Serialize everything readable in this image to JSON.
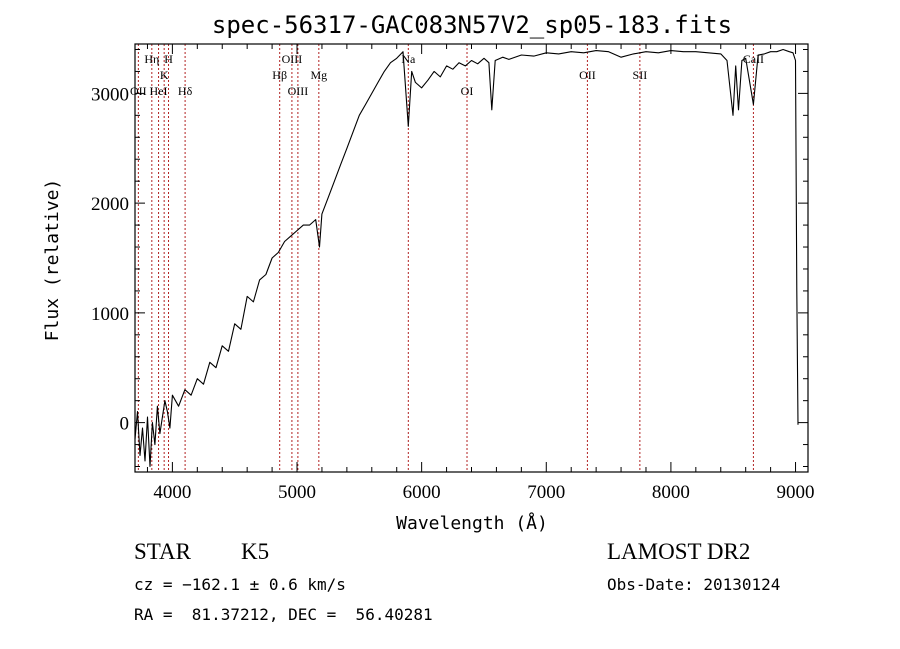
{
  "chart_data": {
    "type": "line",
    "title": "spec-56317-GAC083N57V2_sp05-183.fits",
    "xlabel": "Wavelength (Å)",
    "ylabel": "Flux (relative)",
    "xlim": [
      3700,
      9100
    ],
    "ylim": [
      -450,
      3450
    ],
    "xticks": [
      4000,
      5000,
      6000,
      7000,
      8000,
      9000
    ],
    "yticks": [
      0,
      1000,
      2000,
      3000
    ],
    "series": [
      {
        "color": "#000000",
        "points": [
          [
            3700,
            -150
          ],
          [
            3720,
            100
          ],
          [
            3740,
            -300
          ],
          [
            3760,
            -50
          ],
          [
            3780,
            -350
          ],
          [
            3800,
            50
          ],
          [
            3820,
            -400
          ],
          [
            3840,
            0
          ],
          [
            3860,
            -200
          ],
          [
            3880,
            150
          ],
          [
            3900,
            -100
          ],
          [
            3920,
            50
          ],
          [
            3940,
            200
          ],
          [
            3960,
            100
          ],
          [
            3980,
            -50
          ],
          [
            4000,
            250
          ],
          [
            4050,
            150
          ],
          [
            4100,
            300
          ],
          [
            4150,
            250
          ],
          [
            4200,
            400
          ],
          [
            4250,
            350
          ],
          [
            4300,
            550
          ],
          [
            4350,
            500
          ],
          [
            4400,
            700
          ],
          [
            4450,
            650
          ],
          [
            4500,
            900
          ],
          [
            4550,
            850
          ],
          [
            4600,
            1150
          ],
          [
            4650,
            1100
          ],
          [
            4700,
            1300
          ],
          [
            4750,
            1350
          ],
          [
            4800,
            1500
          ],
          [
            4850,
            1550
          ],
          [
            4900,
            1650
          ],
          [
            4950,
            1700
          ],
          [
            5000,
            1750
          ],
          [
            5050,
            1800
          ],
          [
            5100,
            1800
          ],
          [
            5150,
            1850
          ],
          [
            5180,
            1600
          ],
          [
            5200,
            1900
          ],
          [
            5250,
            2050
          ],
          [
            5300,
            2200
          ],
          [
            5350,
            2350
          ],
          [
            5400,
            2500
          ],
          [
            5450,
            2650
          ],
          [
            5500,
            2800
          ],
          [
            5550,
            2900
          ],
          [
            5600,
            3000
          ],
          [
            5650,
            3100
          ],
          [
            5700,
            3200
          ],
          [
            5750,
            3280
          ],
          [
            5800,
            3320
          ],
          [
            5850,
            3380
          ],
          [
            5893,
            2700
          ],
          [
            5920,
            3200
          ],
          [
            5950,
            3100
          ],
          [
            6000,
            3050
          ],
          [
            6050,
            3120
          ],
          [
            6100,
            3200
          ],
          [
            6150,
            3150
          ],
          [
            6200,
            3250
          ],
          [
            6250,
            3220
          ],
          [
            6300,
            3280
          ],
          [
            6350,
            3250
          ],
          [
            6400,
            3300
          ],
          [
            6450,
            3270
          ],
          [
            6500,
            3320
          ],
          [
            6540,
            3280
          ],
          [
            6563,
            2850
          ],
          [
            6590,
            3300
          ],
          [
            6650,
            3330
          ],
          [
            6700,
            3310
          ],
          [
            6800,
            3350
          ],
          [
            6900,
            3340
          ],
          [
            7000,
            3370
          ],
          [
            7100,
            3360
          ],
          [
            7200,
            3380
          ],
          [
            7300,
            3370
          ],
          [
            7400,
            3390
          ],
          [
            7500,
            3380
          ],
          [
            7600,
            3330
          ],
          [
            7700,
            3360
          ],
          [
            7800,
            3380
          ],
          [
            7900,
            3370
          ],
          [
            8000,
            3390
          ],
          [
            8100,
            3380
          ],
          [
            8200,
            3380
          ],
          [
            8300,
            3370
          ],
          [
            8400,
            3360
          ],
          [
            8450,
            3300
          ],
          [
            8498,
            2800
          ],
          [
            8520,
            3250
          ],
          [
            8542,
            2850
          ],
          [
            8570,
            3300
          ],
          [
            8600,
            3320
          ],
          [
            8662,
            2900
          ],
          [
            8700,
            3350
          ],
          [
            8750,
            3360
          ],
          [
            8800,
            3380
          ],
          [
            8850,
            3380
          ],
          [
            8900,
            3400
          ],
          [
            8950,
            3380
          ],
          [
            8980,
            3370
          ],
          [
            9000,
            3300
          ],
          [
            9010,
            1200
          ],
          [
            9020,
            -20
          ]
        ]
      }
    ],
    "lines": [
      {
        "x": 3835,
        "label": "Hη",
        "row": 1
      },
      {
        "x": 3727,
        "label": "OII",
        "row": 3
      },
      {
        "x": 3889,
        "label": "HeI",
        "row": 3
      },
      {
        "x": 3934,
        "label": "K",
        "row": 2
      },
      {
        "x": 3969,
        "label": "H",
        "row": 1
      },
      {
        "x": 4102,
        "label": "Hδ",
        "row": 3
      },
      {
        "x": 4861,
        "label": "Hβ",
        "row": 2
      },
      {
        "x": 4959,
        "label": "OIII",
        "row": 1
      },
      {
        "x": 5007,
        "label": "OIII",
        "row": 3
      },
      {
        "x": 5175,
        "label": "Mg",
        "row": 2
      },
      {
        "x": 5893,
        "label": "Na",
        "row": 1
      },
      {
        "x": 6364,
        "label": "OI",
        "row": 3
      },
      {
        "x": 7330,
        "label": "OII",
        "row": 2
      },
      {
        "x": 7751,
        "label": "SII",
        "row": 2
      },
      {
        "x": 8662,
        "label": "CaII",
        "row": 1
      }
    ],
    "line_color": "#b22222"
  },
  "info": {
    "class": "STAR",
    "subclass": "K5",
    "survey": "LAMOST DR2",
    "cz": "cz = −162.1 ± 0.6 km/s",
    "obs_date": "Obs-Date: 20130124",
    "coords": "RA =  81.37212, DEC =  56.40281"
  }
}
